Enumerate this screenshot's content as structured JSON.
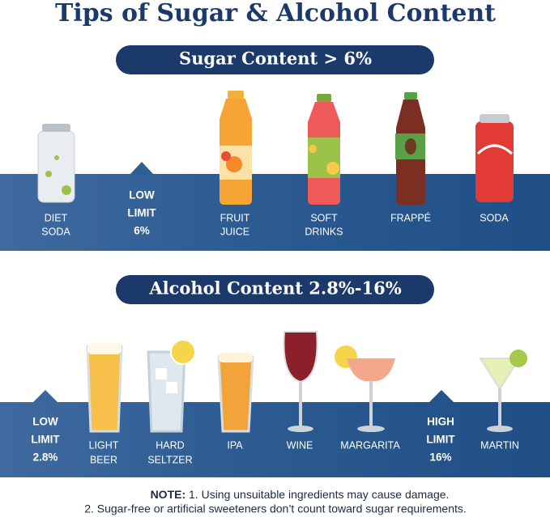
{
  "title": "Tips of Sugar & Alcohol Content",
  "sugar": {
    "heading": "Sugar Content > 6%",
    "limit": [
      "LOW",
      "LIMIT",
      "6%"
    ],
    "items": [
      [
        "DIET",
        "SODA"
      ],
      [
        "FRUIT",
        "JUICE"
      ],
      [
        "SOFT",
        "DRINKS"
      ],
      [
        "FRAPPÉ"
      ],
      [
        "SODA"
      ]
    ]
  },
  "alcohol": {
    "heading": "Alcohol Content 2.8%-16%",
    "low_limit": [
      "LOW",
      "LIMIT",
      "2.8%"
    ],
    "high_limit": [
      "HIGH",
      "LIMIT",
      "16%"
    ],
    "items": [
      [
        "LIGHT",
        "BEER"
      ],
      [
        "HARD",
        "SELTZER"
      ],
      [
        "IPA"
      ],
      [
        "WINE"
      ],
      [
        "MARGARITA"
      ],
      [
        "MARTIN"
      ]
    ]
  },
  "note": {
    "prefix": "NOTE:",
    "lines": [
      "1. Using unsuitable ingredients may cause damage.",
      "2. Sugar-free or artificial sweeteners don’t count toward sugar requirements."
    ]
  }
}
